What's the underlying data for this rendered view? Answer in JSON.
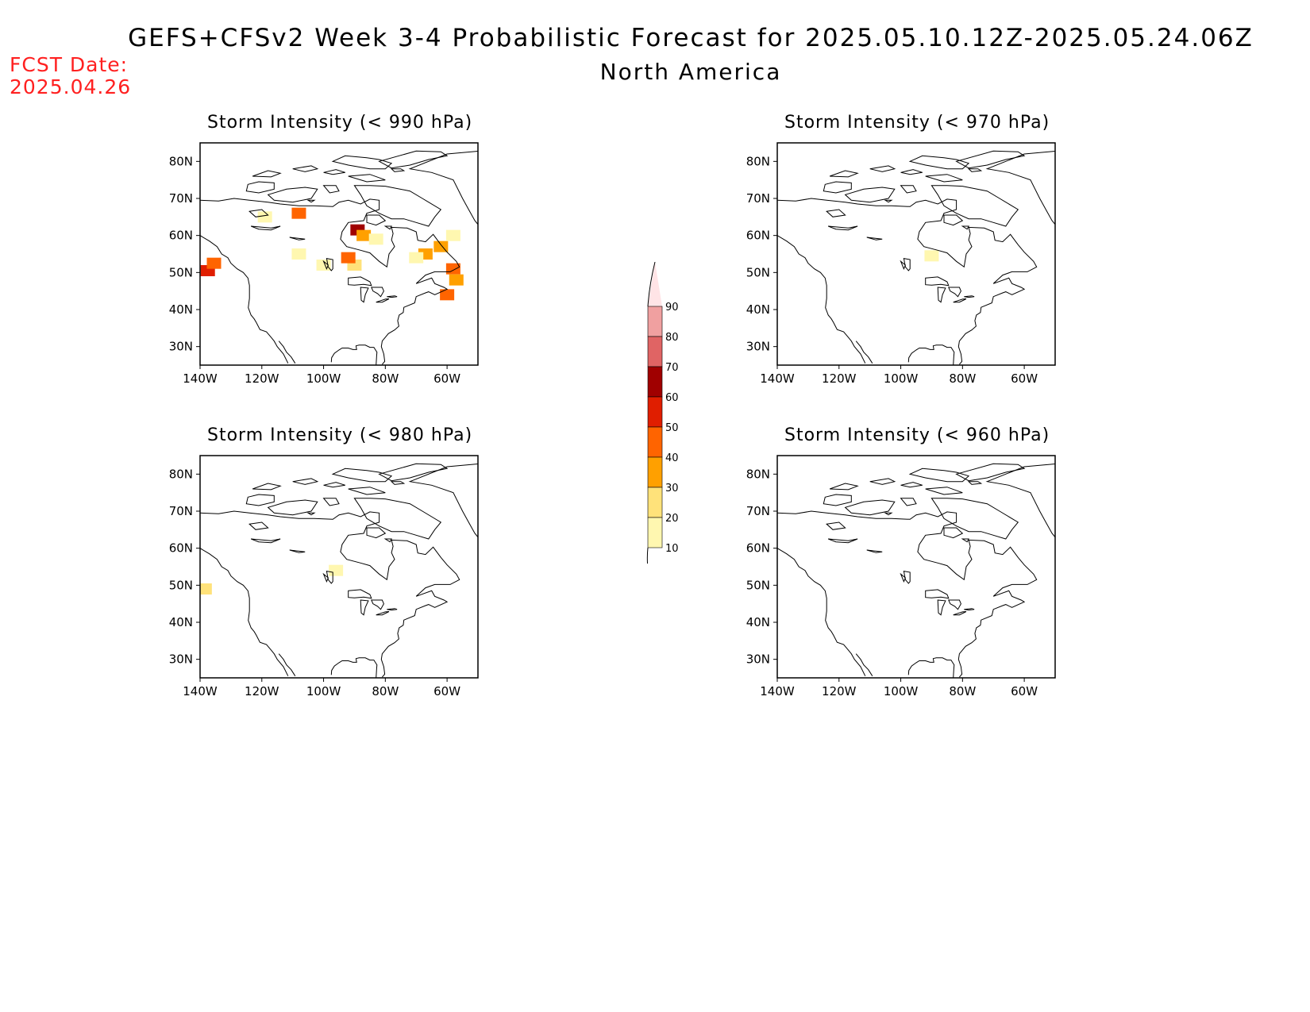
{
  "header": {
    "title": "GEFS+CFSv2 Week 3-4 Probabilistic Forecast for 2025.05.10.12Z-2025.05.24.06Z",
    "subtitle": "North America",
    "fcst_label": "FCST Date:",
    "fcst_date": "2025.04.26"
  },
  "panels": [
    {
      "title": "Storm Intensity (< 990 hPa)",
      "x_ticks": [
        "140W",
        "120W",
        "100W",
        "80W",
        "60W"
      ],
      "y_ticks": [
        "80N",
        "70N",
        "60N",
        "50N",
        "40N",
        "30N"
      ],
      "probability_areas": [
        {
          "lon": -137.5,
          "lat": 50.5,
          "value": 55
        },
        {
          "lon": -135.5,
          "lat": 52.5,
          "value": 40
        },
        {
          "lon": -108,
          "lat": 66,
          "value": 40
        },
        {
          "lon": -119,
          "lat": 65,
          "value": 15
        },
        {
          "lon": -89,
          "lat": 61.5,
          "value": 60
        },
        {
          "lon": -87,
          "lat": 60,
          "value": 35
        },
        {
          "lon": -83,
          "lat": 59,
          "value": 15
        },
        {
          "lon": -90,
          "lat": 52,
          "value": 25
        },
        {
          "lon": -92,
          "lat": 54,
          "value": 45
        },
        {
          "lon": -100,
          "lat": 52,
          "value": 15
        },
        {
          "lon": -108,
          "lat": 55,
          "value": 15
        },
        {
          "lon": -67,
          "lat": 55,
          "value": 35
        },
        {
          "lon": -62,
          "lat": 57,
          "value": 35
        },
        {
          "lon": -70,
          "lat": 54,
          "value": 15
        },
        {
          "lon": -58,
          "lat": 51,
          "value": 45
        },
        {
          "lon": -57,
          "lat": 48,
          "value": 30
        },
        {
          "lon": -60,
          "lat": 44,
          "value": 40
        },
        {
          "lon": -58,
          "lat": 60,
          "value": 15
        }
      ]
    },
    {
      "title": "Storm Intensity (< 970 hPa)",
      "x_ticks": [
        "140W",
        "120W",
        "100W",
        "80W",
        "60W"
      ],
      "y_ticks": [
        "80N",
        "70N",
        "60N",
        "50N",
        "40N",
        "30N"
      ],
      "probability_areas": [
        {
          "lon": -90,
          "lat": 54.5,
          "value": 10
        }
      ]
    },
    {
      "title": "Storm Intensity (< 980 hPa)",
      "x_ticks": [
        "140W",
        "120W",
        "100W",
        "80W",
        "60W"
      ],
      "y_ticks": [
        "80N",
        "70N",
        "60N",
        "50N",
        "40N",
        "30N"
      ],
      "probability_areas": [
        {
          "lon": -138.5,
          "lat": 49,
          "value": 25
        },
        {
          "lon": -96,
          "lat": 54,
          "value": 15
        }
      ]
    },
    {
      "title": "Storm Intensity (< 960 hPa)",
      "x_ticks": [
        "140W",
        "120W",
        "100W",
        "80W",
        "60W"
      ],
      "y_ticks": [
        "80N",
        "70N",
        "60N",
        "50N",
        "40N",
        "30N"
      ],
      "probability_areas": []
    }
  ],
  "colorbar": {
    "levels": [
      "10",
      "20",
      "30",
      "40",
      "50",
      "60",
      "70",
      "80",
      "90"
    ],
    "colors": [
      "#fff7b0",
      "#ffe27a",
      "#ffa000",
      "#ff6400",
      "#e01e00",
      "#a00000",
      "#e06464",
      "#f0a0a0",
      "#ffe4e6"
    ]
  }
}
